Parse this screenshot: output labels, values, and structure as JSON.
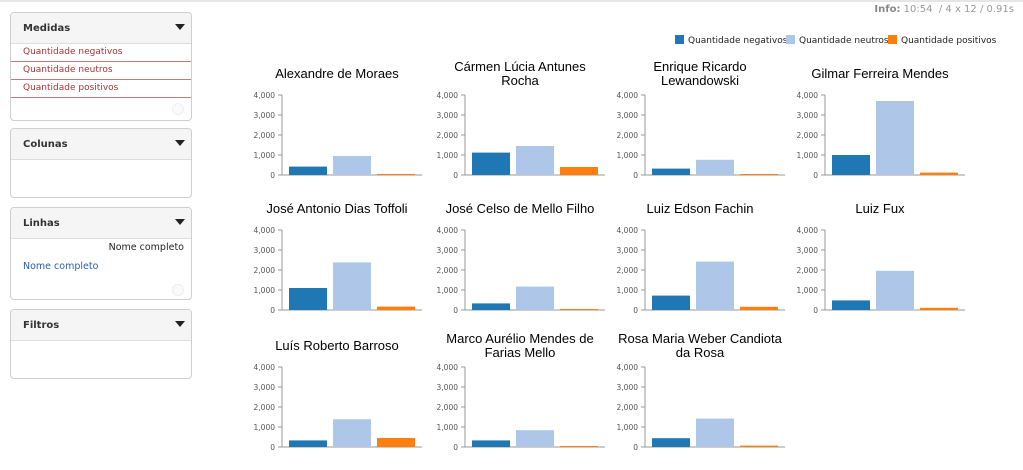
{
  "info": {
    "label": "Info:",
    "time": "10:54",
    "dims": "4 x 12",
    "duration": "0.91s"
  },
  "panels": {
    "measures": {
      "title": "Medidas",
      "items": [
        "Quantidade negativos",
        "Quantidade neutros",
        "Quantidade positivos"
      ]
    },
    "columns": {
      "title": "Colunas"
    },
    "rows": {
      "title": "Linhas",
      "field_header": "Nome completo",
      "field_link": "Nome completo"
    },
    "filters": {
      "title": "Filtros"
    }
  },
  "colors": {
    "negativos": "#1f77b4",
    "neutros": "#aec7e8",
    "positivos": "#ff7f0e"
  },
  "chart_data": {
    "type": "bar",
    "ylim": [
      0,
      4000
    ],
    "yticks": [
      "0",
      "1,000",
      "2,000",
      "3,000",
      "4,000"
    ],
    "series_names": [
      "Quantidade negativos",
      "Quantidade neutros",
      "Quantidade positivos"
    ],
    "panels": [
      {
        "title": [
          "Alexandre de Moraes"
        ],
        "values": [
          420,
          950,
          20
        ]
      },
      {
        "title": [
          "Cármen Lúcia Antunes",
          "Rocha"
        ],
        "values": [
          1120,
          1450,
          400
        ]
      },
      {
        "title": [
          "Enrique Ricardo",
          "Lewandowski"
        ],
        "values": [
          320,
          760,
          20
        ]
      },
      {
        "title": [
          "Gilmar Ferreira Mendes"
        ],
        "values": [
          1000,
          3700,
          120
        ]
      },
      {
        "title": [
          "José Antonio Dias Toffoli"
        ],
        "values": [
          1100,
          2380,
          170
        ]
      },
      {
        "title": [
          "José Celso de Mello Filho"
        ],
        "values": [
          330,
          1170,
          40
        ]
      },
      {
        "title": [
          "Luiz Edson Fachin"
        ],
        "values": [
          720,
          2420,
          160
        ]
      },
      {
        "title": [
          "Luiz Fux"
        ],
        "values": [
          480,
          1960,
          110
        ]
      },
      {
        "title": [
          "Luís Roberto Barroso"
        ],
        "values": [
          330,
          1390,
          450
        ]
      },
      {
        "title": [
          "Marco Aurélio Mendes de",
          "Farias Mello"
        ],
        "values": [
          330,
          840,
          40
        ]
      },
      {
        "title": [
          "Rosa Maria Weber Candiota",
          "da Rosa"
        ],
        "values": [
          440,
          1420,
          70
        ]
      }
    ]
  }
}
